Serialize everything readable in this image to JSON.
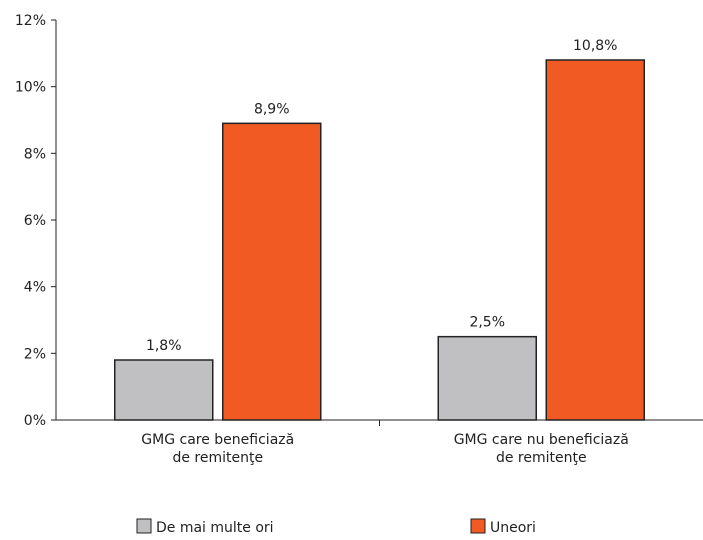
{
  "chart_data": {
    "type": "bar",
    "categories": [
      [
        "GMG care beneficiază",
        "de remitenţe"
      ],
      [
        "GMG care nu beneficiază",
        "de remitenţe"
      ]
    ],
    "series": [
      {
        "name": "De mai multe ori",
        "values": [
          1.8,
          2.5
        ],
        "labels": [
          "1,8%",
          "2,5%"
        ],
        "color": "#c0c0c3"
      },
      {
        "name": "Uneori",
        "values": [
          8.9,
          10.8
        ],
        "labels": [
          "8,9%",
          "10,8%"
        ],
        "color": "#f15a22"
      }
    ],
    "y_ticks": [
      "0%",
      "2%",
      "4%",
      "6%",
      "8%",
      "10%",
      "12%"
    ],
    "ylim": [
      0,
      12
    ],
    "grid": false,
    "legend_position": "bottom"
  }
}
